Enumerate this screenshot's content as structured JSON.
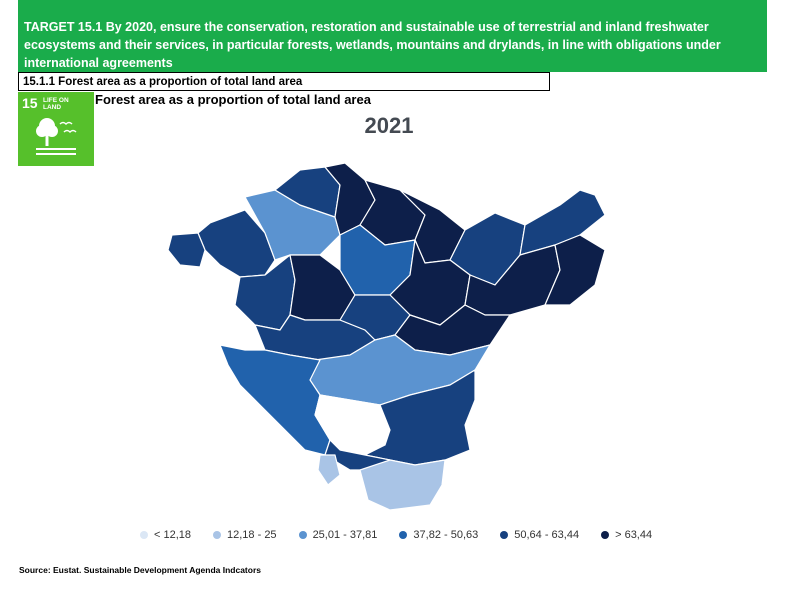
{
  "target": {
    "text": "TARGET 15.1 By 2020, ensure the conservation, restoration and sustainable use of terrestrial and inland freshwater ecosystems and their services, in particular forests, wetlands, mountains and drylands, in line with obligations under international agreements"
  },
  "indicator": {
    "label": "15.1.1 Forest area as a proportion of total land area"
  },
  "sdg_tile": {
    "number": "15",
    "text": "LIFE ON LAND",
    "color": "#56c02b",
    "icon": "tree-and-birds-icon"
  },
  "map": {
    "title": "Forest area as a proportion of total land area",
    "year": "2021",
    "palette": {
      "lt12": "#dbe7f5",
      "c12_25": "#a9c4e6",
      "c25_37": "#5b93d0",
      "c37_50": "#2162ac",
      "c50_63": "#17417f",
      "gt63": "#0d1f4a",
      "nodata": "#ffffff"
    }
  },
  "legend": [
    {
      "label": "< 12,18",
      "color": "#dbe7f5"
    },
    {
      "label": "12,18 - 25",
      "color": "#a9c4e6"
    },
    {
      "label": "25,01 - 37,81",
      "color": "#5b93d0"
    },
    {
      "label": "37,82 - 50,63",
      "color": "#2162ac"
    },
    {
      "label": "50,64 - 63,44",
      "color": "#17417f"
    },
    {
      "label": "> 63,44",
      "color": "#0d1f4a"
    }
  ],
  "source": "Source: Eustat. Sustainable Development Agenda Indcators"
}
